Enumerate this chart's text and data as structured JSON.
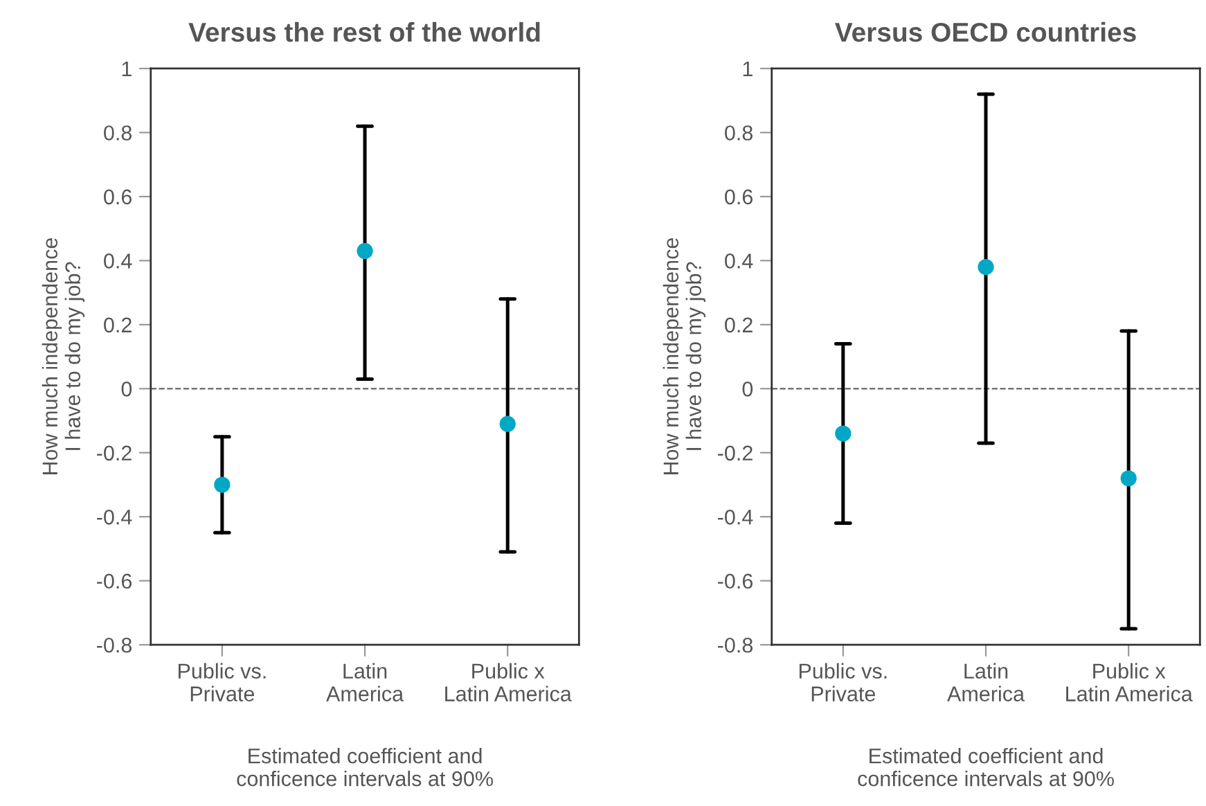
{
  "chart_data": [
    {
      "type": "scatter",
      "title": "Versus the rest of the world",
      "ylabel": "How much independence\nI have to do my job?",
      "xlabel": "Estimated coefficient and\nconficence intervals at 90%",
      "categories": [
        "Public vs.\nPrivate",
        "Latin\nAmerica",
        "Public x\nLatin America"
      ],
      "series": [
        {
          "color": "#00a8c6",
          "values": [
            -0.3,
            0.43,
            -0.11
          ],
          "errors": [
            [
              -0.45,
              -0.15
            ],
            [
              0.03,
              0.82
            ],
            [
              -0.51,
              0.28
            ]
          ]
        }
      ],
      "ylim": [
        -0.8,
        1
      ],
      "yticks": [
        -0.8,
        -0.6,
        -0.4,
        -0.2,
        0,
        0.2,
        0.4,
        0.6,
        0.8,
        1
      ],
      "grid": false,
      "marker": "circle",
      "ref_lines": [
        {
          "axis": "y",
          "value": 0,
          "color": "#666666",
          "line_style": "dashed"
        }
      ]
    },
    {
      "type": "scatter",
      "title": "Versus OECD countries",
      "ylabel": "How much independence\nI have to do my job?",
      "xlabel": "Estimated coefficient and\nconficence intervals at 90%",
      "categories": [
        "Public vs.\nPrivate",
        "Latin\nAmerica",
        "Public x\nLatin America"
      ],
      "series": [
        {
          "color": "#00a8c6",
          "values": [
            -0.14,
            0.38,
            -0.28
          ],
          "errors": [
            [
              -0.42,
              0.14
            ],
            [
              -0.17,
              0.92
            ],
            [
              -0.75,
              0.18
            ]
          ]
        }
      ],
      "ylim": [
        -0.8,
        1
      ],
      "yticks": [
        -0.8,
        -0.6,
        -0.4,
        -0.2,
        0,
        0.2,
        0.4,
        0.6,
        0.8,
        1
      ],
      "grid": false,
      "marker": "circle",
      "ref_lines": [
        {
          "axis": "y",
          "value": 0,
          "color": "#666666",
          "line_style": "dashed"
        }
      ]
    }
  ]
}
